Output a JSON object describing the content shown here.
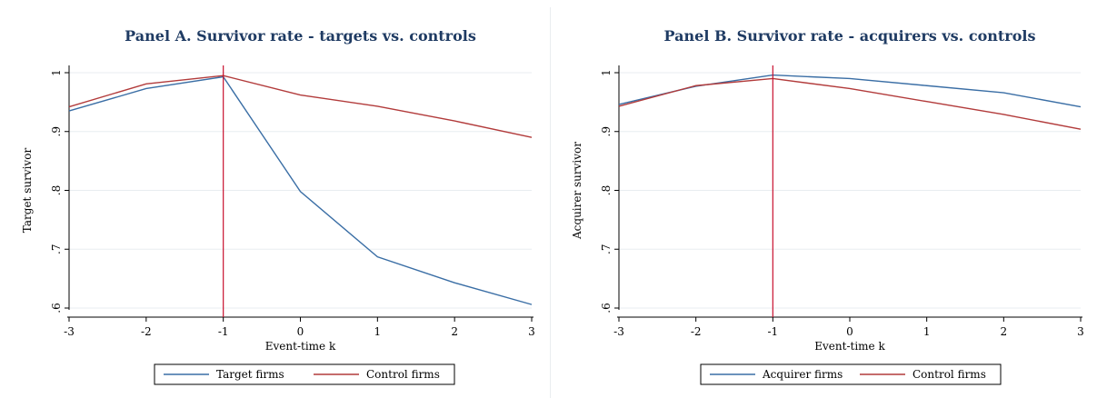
{
  "chart_data": [
    {
      "type": "line",
      "title": "Panel A. Survivor rate - targets vs. controls",
      "xlabel": "Event-time k",
      "ylabel": "Target survivor",
      "x": [
        -3,
        -2,
        -1,
        0,
        1,
        2,
        3
      ],
      "xticks": [
        "-3",
        "-2",
        "-1",
        "0",
        "1",
        "2",
        "3"
      ],
      "yticks": [
        0.6,
        0.7,
        0.8,
        0.9,
        1.0
      ],
      "ytick_labels": [
        ".6",
        ".7",
        ".8",
        ".9",
        "1"
      ],
      "xlim": [
        -3,
        3
      ],
      "ylim": [
        0.6,
        1.0
      ],
      "vline_x": -1,
      "grid": true,
      "legend_position": "bottom",
      "series": [
        {
          "name": "Target firms",
          "color": "#3a6ea5",
          "values": [
            0.935,
            0.973,
            0.993,
            0.798,
            0.687,
            0.643,
            0.606
          ]
        },
        {
          "name": "Control firms",
          "color": "#b23b3b",
          "values": [
            0.942,
            0.981,
            0.995,
            0.962,
            0.943,
            0.918,
            0.89
          ]
        }
      ]
    },
    {
      "type": "line",
      "title": "Panel B. Survivor rate - acquirers vs. controls",
      "xlabel": "Event-time k",
      "ylabel": "Acquirer survivor",
      "x": [
        -3,
        -2,
        -1,
        0,
        1,
        2,
        3
      ],
      "xticks": [
        "-3",
        "-2",
        "-1",
        "0",
        "1",
        "2",
        "3"
      ],
      "yticks": [
        0.6,
        0.7,
        0.8,
        0.9,
        1.0
      ],
      "ytick_labels": [
        ".6",
        ".7",
        ".8",
        ".9",
        "1"
      ],
      "xlim": [
        -3,
        3
      ],
      "ylim": [
        0.6,
        1.0
      ],
      "vline_x": -1,
      "grid": true,
      "legend_position": "bottom",
      "series": [
        {
          "name": "Acquirer firms",
          "color": "#3a6ea5",
          "values": [
            0.946,
            0.977,
            0.996,
            0.99,
            0.978,
            0.966,
            0.942
          ]
        },
        {
          "name": "Control firms",
          "color": "#b23b3b",
          "values": [
            0.943,
            0.978,
            0.99,
            0.973,
            0.951,
            0.929,
            0.904
          ]
        }
      ]
    }
  ],
  "colors": {
    "vline": "#c8102e",
    "grid": "#e8edf0",
    "axis": "#000000",
    "legend_border": "#000000"
  }
}
